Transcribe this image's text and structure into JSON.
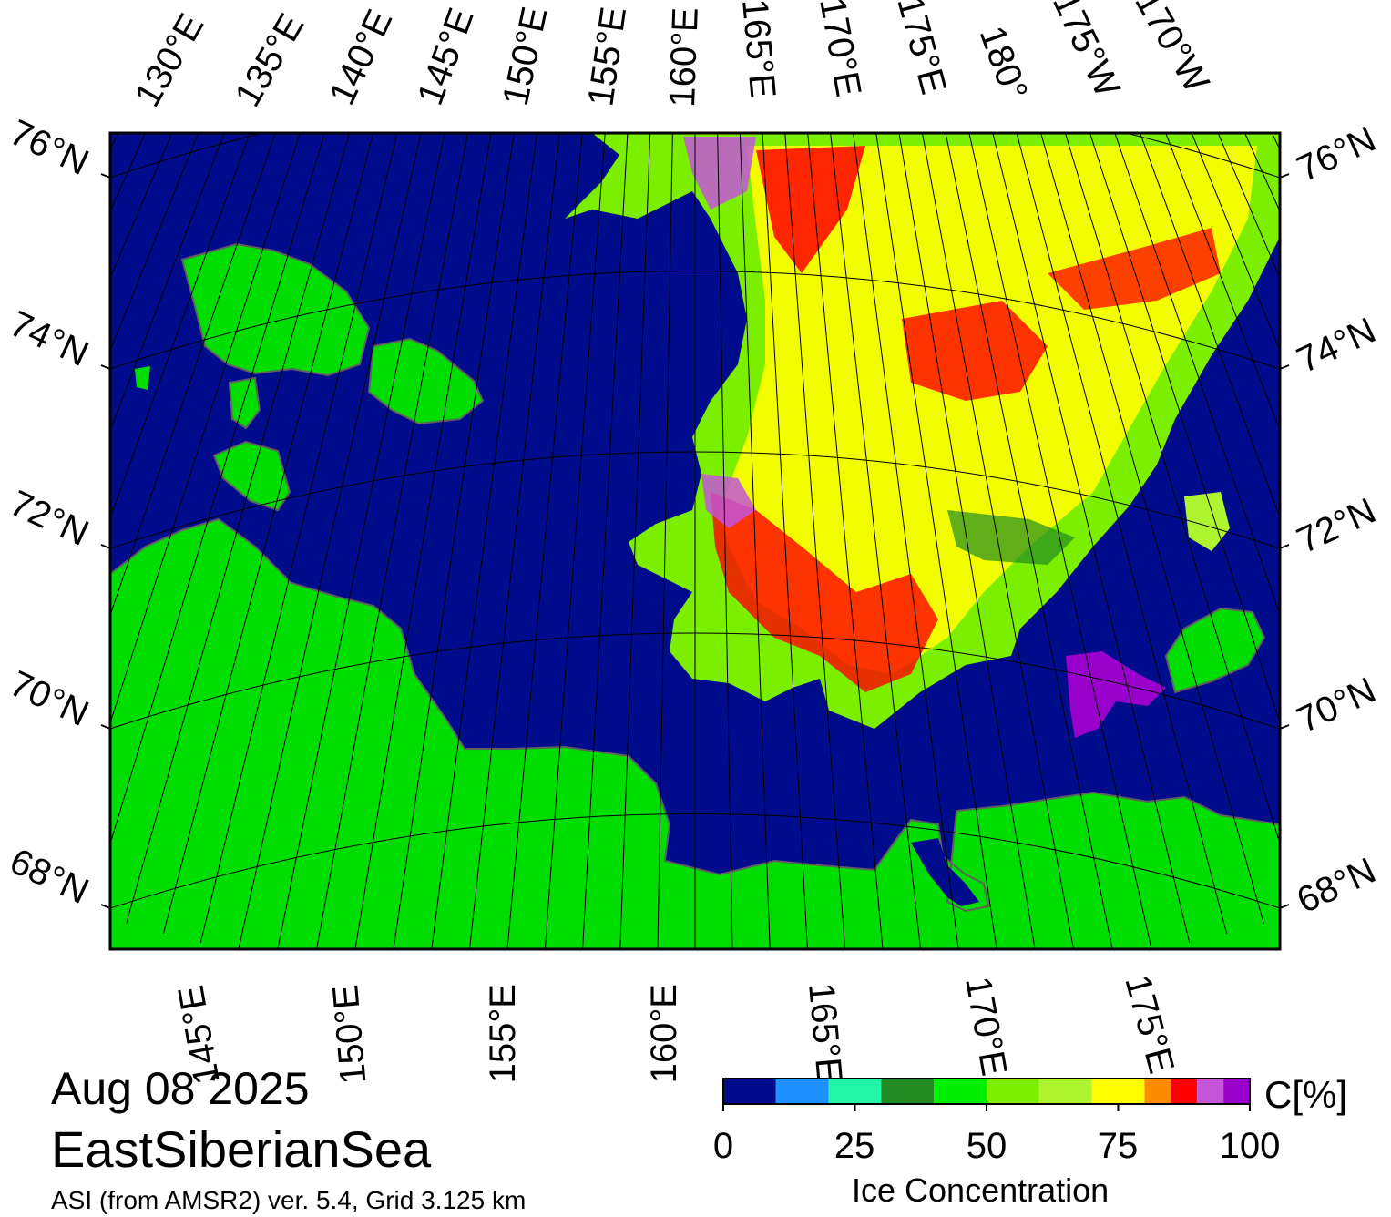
{
  "map": {
    "date": "Aug 08 2025",
    "region": "EastSiberianSea",
    "product": "ASI (from AMSR2) ver. 5.4,  Grid 3.125 km",
    "top_lon_labels": [
      "130°E",
      "135°E",
      "140°E",
      "145°E",
      "150°E",
      "155°E",
      "160°E",
      "165°E",
      "170°E",
      "175°E",
      "180°",
      "175°W",
      "170°W"
    ],
    "bottom_lon_labels": [
      "145°E",
      "150°E",
      "155°E",
      "160°E",
      "165°E",
      "170°E",
      "175°E"
    ],
    "left_lat_labels": [
      "76°N",
      "74°N",
      "72°N",
      "70°N",
      "68°N"
    ],
    "right_lat_labels": [
      "76°N",
      "74°N",
      "72°N",
      "70°N",
      "68°N"
    ],
    "colors": {
      "ocean": "#000c8c",
      "land": "#00dd00",
      "land_shadow": "#808080"
    }
  },
  "colorbar": {
    "title": "Ice Concentration",
    "unit": "C[%]",
    "tick_labels": [
      "0",
      "25",
      "50",
      "75",
      "100"
    ],
    "min": 0,
    "max": 100,
    "bins": [
      {
        "from": 0,
        "to": 10,
        "color": "#000c8c"
      },
      {
        "from": 10,
        "to": 20,
        "color": "#1e90ff"
      },
      {
        "from": 20,
        "to": 30,
        "color": "#22f5a5"
      },
      {
        "from": 30,
        "to": 40,
        "color": "#228b22"
      },
      {
        "from": 40,
        "to": 50,
        "color": "#00ee00"
      },
      {
        "from": 50,
        "to": 60,
        "color": "#7cee00"
      },
      {
        "from": 60,
        "to": 70,
        "color": "#aef530"
      },
      {
        "from": 70,
        "to": 80,
        "color": "#ffff00"
      },
      {
        "from": 80,
        "to": 85,
        "color": "#ff8c00"
      },
      {
        "from": 85,
        "to": 90,
        "color": "#ff0000"
      },
      {
        "from": 90,
        "to": 95,
        "color": "#c455d8"
      },
      {
        "from": 95,
        "to": 100,
        "color": "#9900cc"
      }
    ]
  }
}
